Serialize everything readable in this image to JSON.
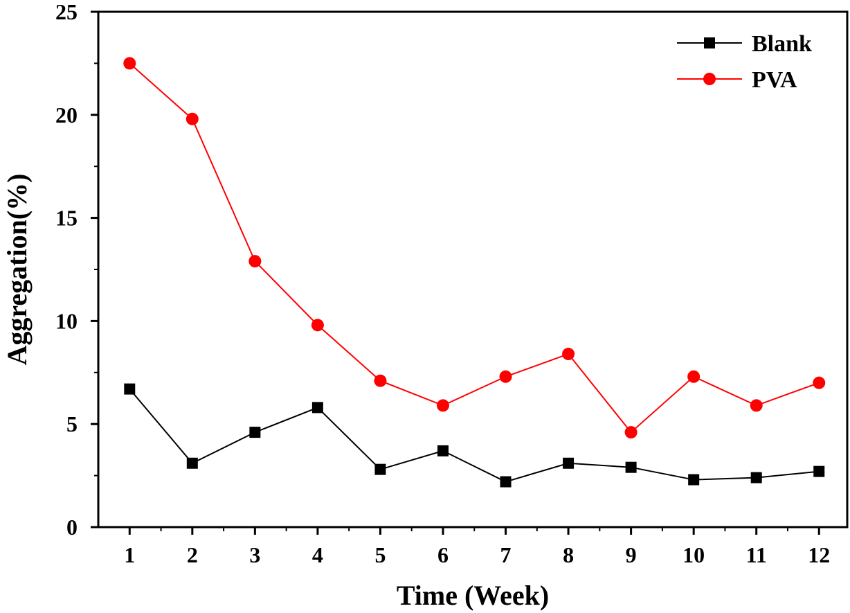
{
  "chart_data": {
    "type": "line",
    "xlabel": "Time (Week)",
    "ylabel": "Aggregation(%)",
    "xlim": [
      0.5,
      12.45
    ],
    "ylim": [
      0,
      25
    ],
    "x_ticks": [
      "1",
      "2",
      "3",
      "4",
      "5",
      "6",
      "7",
      "8",
      "9",
      "10",
      "11",
      "12"
    ],
    "y_ticks": [
      "0",
      "5",
      "10",
      "15",
      "20",
      "25"
    ],
    "x": [
      1,
      2,
      3,
      4,
      5,
      6,
      7,
      8,
      9,
      10,
      11,
      12
    ],
    "grid": false,
    "legend_position": "top-right",
    "series": [
      {
        "name": "Blank",
        "color": "#000000",
        "marker": "square",
        "values": [
          6.7,
          3.1,
          4.6,
          5.8,
          2.8,
          3.7,
          2.2,
          3.1,
          2.9,
          2.3,
          2.4,
          2.7
        ]
      },
      {
        "name": "PVA",
        "color": "#ff0000",
        "marker": "circle",
        "values": [
          22.5,
          19.8,
          12.9,
          9.8,
          7.1,
          5.9,
          7.3,
          8.4,
          4.6,
          7.3,
          5.9,
          7.0
        ]
      }
    ]
  }
}
